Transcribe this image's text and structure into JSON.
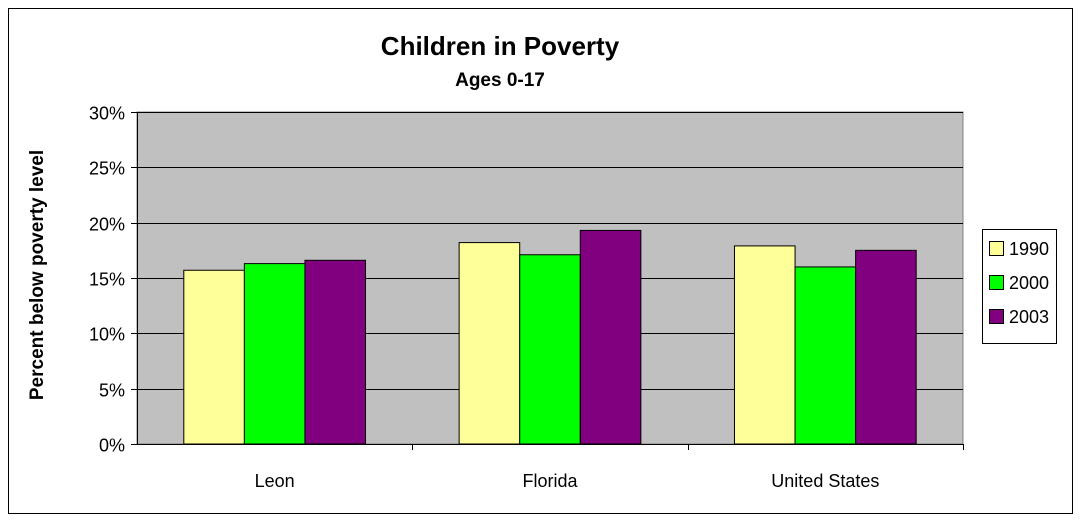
{
  "chart_data": {
    "type": "bar",
    "title": "Children in Poverty",
    "subtitle": "Ages 0-17",
    "xlabel": "",
    "ylabel": "Percent below poverty level",
    "categories": [
      "Leon",
      "Florida",
      "United States"
    ],
    "series": [
      {
        "name": "1990",
        "values": [
          15.7,
          18.2,
          17.9
        ],
        "color": "#ffff99"
      },
      {
        "name": "2000",
        "values": [
          16.3,
          17.1,
          16.0
        ],
        "color": "#00ff00"
      },
      {
        "name": "2003",
        "values": [
          16.6,
          19.3,
          17.5
        ],
        "color": "#800080"
      }
    ],
    "ylim": [
      0,
      30
    ],
    "y_ticks": [
      "0%",
      "5%",
      "10%",
      "15%",
      "20%",
      "25%",
      "30%"
    ],
    "y_tick_values": [
      0,
      5,
      10,
      15,
      20,
      25,
      30
    ],
    "grid": true,
    "legend": "right",
    "plot_background": "#c0c0c0"
  }
}
